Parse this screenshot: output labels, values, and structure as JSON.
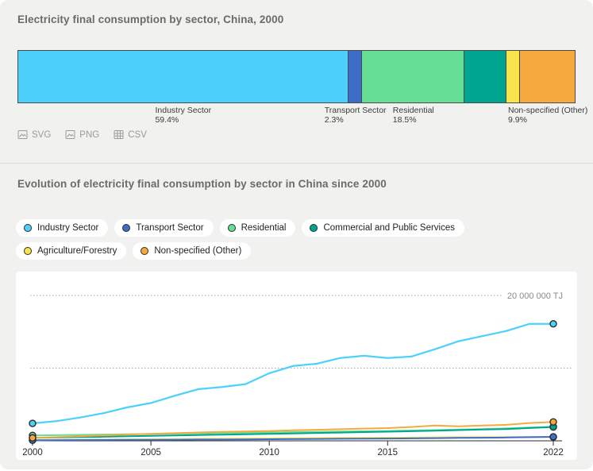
{
  "page": {
    "card_background": "#f1f1ef",
    "panel_background": "#ffffff"
  },
  "section1": {
    "title": "Electricity final consumption by sector, China, 2000",
    "bar_segments": [
      {
        "id": "industry",
        "label": "Industry Sector",
        "share_pct": 59.4,
        "share_label": "59.4%",
        "color": "#4DD1FC",
        "show_label": true
      },
      {
        "id": "transport",
        "label": "Transport Sector",
        "share_pct": 2.3,
        "share_label": "2.3%",
        "color": "#3E6DC9",
        "show_label": true
      },
      {
        "id": "residential",
        "label": "Residential",
        "share_pct": 18.5,
        "share_label": "18.5%",
        "color": "#66DE95",
        "show_label": true
      },
      {
        "id": "commercial",
        "label": "Commercial and Public Services",
        "share_pct": 7.6,
        "share_label": "",
        "color": "#00A591",
        "show_label": false
      },
      {
        "id": "agriculture",
        "label": "Agriculture/Forestry",
        "share_pct": 2.3,
        "share_label": "",
        "color": "#F9E54B",
        "show_label": false
      },
      {
        "id": "non_specified",
        "label": "Non-specified (Other)",
        "share_pct": 9.9,
        "share_label": "9.9%",
        "color": "#F5A93F",
        "show_label": true
      }
    ],
    "export_buttons": [
      {
        "label": "SVG",
        "icon": "image-icon"
      },
      {
        "label": "PNG",
        "icon": "image-icon"
      },
      {
        "label": "CSV",
        "icon": "table-icon"
      }
    ]
  },
  "section2": {
    "title": "Evolution of electricity final consumption by sector in China since 2000",
    "legend": [
      {
        "id": "industry",
        "label": "Industry Sector",
        "color": "#4DD1FC"
      },
      {
        "id": "transport",
        "label": "Transport Sector",
        "color": "#3E6DC9"
      },
      {
        "id": "residential",
        "label": "Residential",
        "color": "#66DE95"
      },
      {
        "id": "commercial",
        "label": "Commercial and Public Services",
        "color": "#00A591"
      },
      {
        "id": "agriculture",
        "label": "Agriculture/Forestry",
        "color": "#F9E54B"
      },
      {
        "id": "non_specified",
        "label": "Non-specified (Other)",
        "color": "#F5A93F"
      }
    ]
  },
  "chart_data": {
    "type": "line",
    "unit": "TJ",
    "x_range": [
      2000,
      2022
    ],
    "x_ticks": [
      2000,
      2005,
      2010,
      2015,
      2022
    ],
    "ylim_million_tj": [
      0,
      23.3
    ],
    "y_gridlines": [
      {
        "value_million_tj": 10,
        "label": ""
      },
      {
        "value_million_tj": 20,
        "label": "20 000 000 TJ"
      }
    ],
    "grid": "dotted-horizontal",
    "legend_position": "above-chart",
    "markers": "first-and-last-point",
    "draw_order": [
      "residential",
      "agriculture",
      "commercial",
      "transport",
      "non_specified",
      "industry"
    ],
    "series": [
      {
        "id": "industry",
        "name": "Industry Sector",
        "color": "#4DD1FC",
        "stroke_width": 2.25,
        "values_million_tj": [
          2.4,
          2.7,
          3.2,
          3.8,
          4.6,
          5.2,
          6.2,
          7.1,
          7.4,
          7.8,
          9.3,
          10.3,
          10.6,
          11.4,
          11.7,
          11.4,
          11.6,
          12.6,
          13.7,
          14.4,
          15.1,
          16.1,
          16.1
        ]
      },
      {
        "id": "transport",
        "name": "Transport Sector",
        "color": "#3E6DC9",
        "stroke_width": 2,
        "values_million_tj": [
          0.09,
          0.1,
          0.11,
          0.12,
          0.13,
          0.14,
          0.15,
          0.17,
          0.18,
          0.2,
          0.22,
          0.24,
          0.26,
          0.28,
          0.3,
          0.32,
          0.34,
          0.37,
          0.4,
          0.43,
          0.46,
          0.5,
          0.55
        ]
      },
      {
        "id": "residential",
        "name": "Residential",
        "color": "#66DE95",
        "stroke_width": 2,
        "values_million_tj": [
          0.74,
          0.78,
          0.82,
          0.86,
          0.9,
          0.94,
          0.98,
          1.02,
          1.06,
          1.1,
          1.15,
          1.2,
          1.24,
          1.28,
          1.32,
          1.36,
          1.42,
          1.48,
          1.55,
          1.62,
          1.7,
          1.82,
          1.95
        ]
      },
      {
        "id": "commercial",
        "name": "Commercial and Public Services",
        "color": "#00A591",
        "stroke_width": 2,
        "values_million_tj": [
          0.4,
          0.45,
          0.5,
          0.56,
          0.62,
          0.68,
          0.74,
          0.8,
          0.85,
          0.9,
          0.96,
          1.02,
          1.08,
          1.14,
          1.2,
          1.26,
          1.32,
          1.4,
          1.48,
          1.55,
          1.62,
          1.76,
          1.9
        ]
      },
      {
        "id": "agriculture",
        "name": "Agriculture/Forestry",
        "color": "#F9E54B",
        "stroke_width": 2,
        "values_million_tj": [
          0.09,
          0.11,
          0.13,
          0.16,
          0.19,
          0.22,
          0.25,
          0.28,
          0.3,
          0.32,
          0.34,
          0.36,
          0.38,
          0.4,
          0.42,
          0.44,
          0.46,
          0.48,
          0.5,
          0.52,
          0.5,
          0.51,
          0.52
        ]
      },
      {
        "id": "non_specified",
        "name": "Non-specified (Other)",
        "color": "#F5A93F",
        "stroke_width": 2,
        "values_million_tj": [
          0.4,
          0.5,
          0.62,
          0.74,
          0.86,
          0.95,
          1.05,
          1.15,
          1.22,
          1.28,
          1.35,
          1.45,
          1.52,
          1.6,
          1.68,
          1.75,
          1.9,
          2.1,
          2.0,
          2.1,
          2.2,
          2.45,
          2.6
        ]
      }
    ],
    "axis_tick_label_color": "#2b2b2b",
    "gridline_label_color": "#8a8a8a"
  }
}
